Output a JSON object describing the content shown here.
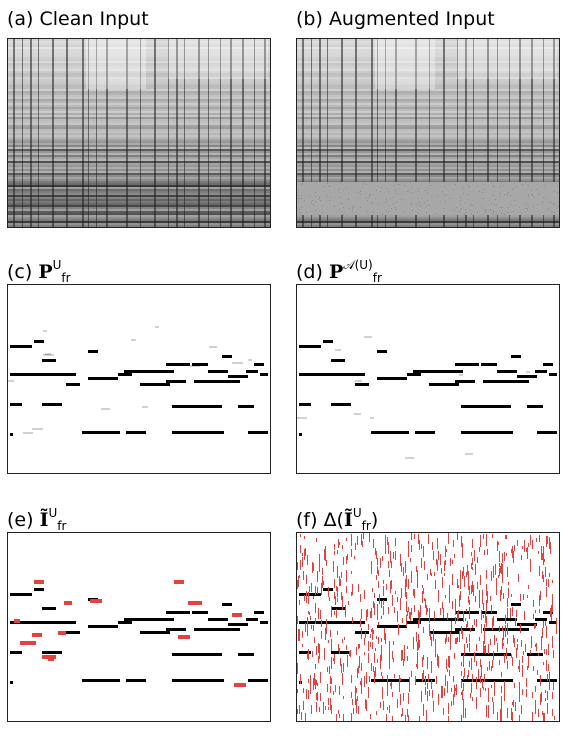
{
  "panels": [
    {
      "id": "a",
      "tag": "(a)",
      "title": "Clean Input",
      "kind": "spectrogram",
      "masked": false
    },
    {
      "id": "b",
      "tag": "(b)",
      "title": "Augmented Input",
      "kind": "spectrogram",
      "masked": true
    },
    {
      "id": "c",
      "tag": "(c)",
      "math": "P",
      "sub": "fr",
      "sup": "U",
      "kind": "pianoroll"
    },
    {
      "id": "d",
      "tag": "(d)",
      "math": "P",
      "sub": "fr",
      "sup": "𝒜(U)",
      "kind": "pianoroll"
    },
    {
      "id": "e",
      "tag": "(e)",
      "math": "Ĩ",
      "sub": "fr",
      "sup": "U",
      "kind": "pianoroll-red"
    },
    {
      "id": "f",
      "tag": "(f)",
      "prefix": "Δ(",
      "math": "Ĩ",
      "sub": "fr",
      "sup": "U",
      "suffix": ")",
      "kind": "pianoroll-noise"
    }
  ],
  "colors": {
    "ink": "#000000",
    "accent": "#e8403f",
    "mask": "#a7a7a7",
    "frame": "#222222"
  }
}
